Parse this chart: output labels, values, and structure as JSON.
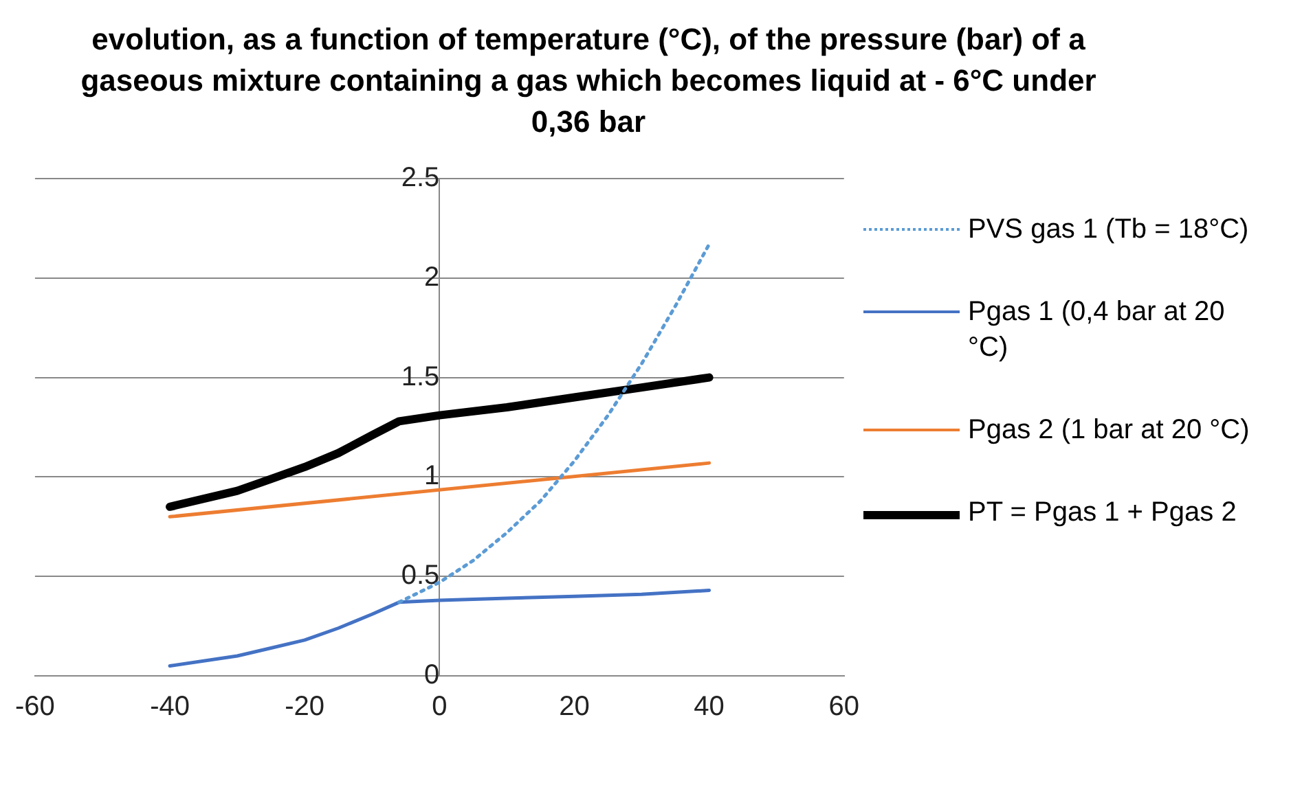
{
  "chart_data": {
    "type": "line",
    "title": "evolution, as a function of temperature (°C),  of the pressure (bar) of a gaseous mixture containing a gas which becomes liquid at - 6°C under 0,36 bar",
    "xlim": [
      -60,
      60
    ],
    "xticks": [
      -60,
      -40,
      -20,
      0,
      20,
      40,
      60
    ],
    "ylim": [
      0,
      2.5
    ],
    "yticks": [
      0,
      0.5,
      1,
      1.5,
      2,
      2.5
    ],
    "grid": "y",
    "legend": "right",
    "marker": "none",
    "series": [
      {
        "name": "PVS gas 1 (Tb = 18°C)",
        "color": "#5b9bd5",
        "line_style": "dotted",
        "x": [
          -6,
          0,
          5,
          10,
          15,
          20,
          25,
          30,
          35,
          40
        ],
        "values": [
          0.37,
          0.47,
          0.58,
          0.72,
          0.88,
          1.08,
          1.31,
          1.57,
          1.86,
          2.17
        ]
      },
      {
        "name": "Pgas 1 (0,4 bar at 20 °C)",
        "color": "#4472c4",
        "line_style": "solid",
        "x": [
          -40,
          -30,
          -25,
          -20,
          -15,
          -10,
          -6,
          0,
          10,
          20,
          30,
          40
        ],
        "values": [
          0.05,
          0.1,
          0.14,
          0.18,
          0.24,
          0.31,
          0.37,
          0.38,
          0.39,
          0.4,
          0.41,
          0.43
        ]
      },
      {
        "name": "Pgas 2 (1 bar at 20 °C)",
        "color": "#ed7d31",
        "line_style": "solid",
        "x": [
          -40,
          40
        ],
        "values": [
          0.8,
          1.07
        ]
      },
      {
        "name": "PT = Pgas 1 + Pgas 2",
        "color": "#000000",
        "line_style": "solid",
        "x": [
          -40,
          -30,
          -25,
          -20,
          -15,
          -10,
          -6,
          0,
          10,
          20,
          30,
          40
        ],
        "values": [
          0.85,
          0.93,
          0.99,
          1.05,
          1.12,
          1.21,
          1.28,
          1.31,
          1.35,
          1.4,
          1.45,
          1.5
        ]
      }
    ]
  }
}
